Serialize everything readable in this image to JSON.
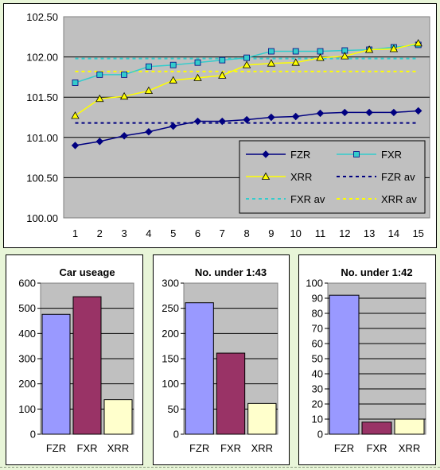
{
  "charts": [
    {
      "type": "line",
      "title": "",
      "x": [
        1,
        2,
        3,
        4,
        5,
        6,
        7,
        8,
        9,
        10,
        11,
        12,
        13,
        14,
        15
      ],
      "ylim": [
        100.0,
        102.5
      ],
      "yticks": [
        "100.00",
        "100.50",
        "101.00",
        "101.50",
        "102.00",
        "102.50"
      ],
      "xticks": [
        "1",
        "2",
        "3",
        "4",
        "5",
        "6",
        "7",
        "8",
        "9",
        "10",
        "11",
        "12",
        "13",
        "14",
        "15"
      ],
      "series": [
        {
          "name": "FZR",
          "color": "#000080",
          "marker": "diamond",
          "values": [
            100.9,
            100.95,
            101.02,
            101.07,
            101.14,
            101.2,
            101.2,
            101.22,
            101.25,
            101.26,
            101.3,
            101.31,
            101.31,
            101.31,
            101.33
          ]
        },
        {
          "name": "FXR",
          "color": "#33cccc",
          "marker": "square",
          "values": [
            101.68,
            101.78,
            101.78,
            101.88,
            101.9,
            101.93,
            101.96,
            101.99,
            102.07,
            102.07,
            102.07,
            102.08,
            102.09,
            102.12,
            102.15
          ]
        },
        {
          "name": "XRR",
          "color": "#ffff00",
          "marker": "triangle",
          "values": [
            101.27,
            101.48,
            101.51,
            101.58,
            101.71,
            101.74,
            101.77,
            101.9,
            101.92,
            101.93,
            101.99,
            102.01,
            102.09,
            102.1,
            102.17
          ]
        }
      ],
      "averages": [
        {
          "name": "FZR av",
          "color": "#000080",
          "value": 101.18
        },
        {
          "name": "FXR av",
          "color": "#33cccc",
          "value": 101.98
        },
        {
          "name": "XRR av",
          "color": "#ffff00",
          "value": 101.82
        }
      ],
      "legend": "bottom-right",
      "grid": true
    },
    {
      "type": "bar",
      "title": "Car useage",
      "categories": [
        "FZR",
        "FXR",
        "XRR"
      ],
      "values": [
        476,
        546,
        137
      ],
      "colors": [
        "#9999ff",
        "#993366",
        "#ffffcc"
      ],
      "ylim": [
        0,
        600
      ],
      "yticks": [
        "0",
        "100",
        "200",
        "300",
        "400",
        "500",
        "600"
      ]
    },
    {
      "type": "bar",
      "title": "No. under 1:43",
      "categories": [
        "FZR",
        "FXR",
        "XRR"
      ],
      "values": [
        261,
        161,
        61
      ],
      "colors": [
        "#9999ff",
        "#993366",
        "#ffffcc"
      ],
      "ylim": [
        0,
        300
      ],
      "yticks": [
        "0",
        "50",
        "100",
        "150",
        "200",
        "250",
        "300"
      ]
    },
    {
      "type": "bar",
      "title": "No. under 1:42",
      "categories": [
        "FZR",
        "FXR",
        "XRR"
      ],
      "values": [
        92,
        8,
        10
      ],
      "colors": [
        "#9999ff",
        "#993366",
        "#ffffcc"
      ],
      "ylim": [
        0,
        100
      ],
      "yticks": [
        "0",
        "10",
        "20",
        "30",
        "40",
        "50",
        "60",
        "70",
        "80",
        "90",
        "100"
      ]
    }
  ],
  "style": {
    "plot_bg": "#c0c0c0",
    "grid_color": "#000000"
  }
}
